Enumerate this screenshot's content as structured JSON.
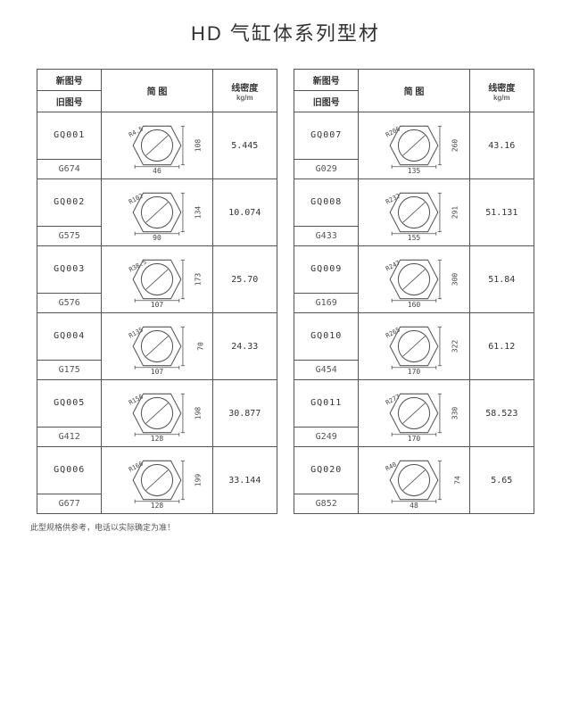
{
  "title": "HD  气缸体系列型材",
  "headers": {
    "new_code": "新图号",
    "old_code": "旧图号",
    "drawing": "简  图",
    "density": "线密度",
    "density_unit": "kg/m"
  },
  "leftRows": [
    {
      "code": "GQ001",
      "old": "G674",
      "dia": "R4.5",
      "w": "46",
      "h": "108",
      "density": "5.445"
    },
    {
      "code": "GQ002",
      "old": "G575",
      "dia": "R102",
      "w": "90",
      "h": "134",
      "density": "10.074"
    },
    {
      "code": "GQ003",
      "old": "G576",
      "dia": "R38.5",
      "w": "107",
      "h": "173",
      "density": "25.70"
    },
    {
      "code": "GQ004",
      "old": "G175",
      "dia": "R135",
      "w": "107",
      "h": "70",
      "density": "24.33"
    },
    {
      "code": "GQ005",
      "old": "G412",
      "dia": "R156",
      "w": "128",
      "h": "198",
      "density": "30.877"
    },
    {
      "code": "GQ006",
      "old": "G677",
      "dia": "R166",
      "w": "128",
      "h": "199",
      "density": "33.144"
    }
  ],
  "rightRows": [
    {
      "code": "GQ007",
      "old": "G029",
      "dia": "R206",
      "w": "135",
      "h": "260",
      "density": "43.16"
    },
    {
      "code": "GQ008",
      "old": "G433",
      "dia": "R232",
      "w": "155",
      "h": "291",
      "density": "51.131"
    },
    {
      "code": "GQ009",
      "old": "G169",
      "dia": "R247",
      "w": "160",
      "h": "300",
      "density": "51.84"
    },
    {
      "code": "GQ010",
      "old": "G454",
      "dia": "R265",
      "w": "170",
      "h": "322",
      "density": "61.12"
    },
    {
      "code": "GQ011",
      "old": "G249",
      "dia": "R277",
      "w": "170",
      "h": "330",
      "density": "58.523"
    },
    {
      "code": "GQ020",
      "old": "G852",
      "dia": "R40",
      "w": "48",
      "h": "74",
      "density": "5.65"
    }
  ],
  "footnote": "此型规格供参考，电话以实际确定为准！",
  "colors": {
    "border": "#555555",
    "text": "#333333",
    "bg": "#ffffff"
  }
}
